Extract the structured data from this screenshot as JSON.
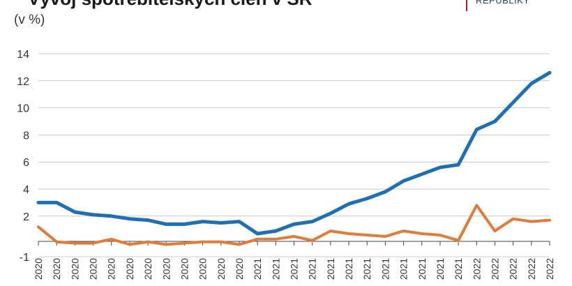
{
  "header": {
    "title": "Vývoj spotřebitelských cien v SR",
    "logo_text": "REPUBLIKY",
    "unit": "(v %)"
  },
  "colors": {
    "series_1": "#1f6fb4",
    "series_2": "#e07b39",
    "grid": "#c8c8c8",
    "logo_accent": "#c8102e"
  },
  "chart_data": {
    "type": "line",
    "title": "Vývoj spotřebitelských cien v SR",
    "ylabel": "(v %)",
    "ylim": [
      -1,
      14
    ],
    "yticks": [
      -1,
      2,
      4,
      6,
      8,
      10,
      12,
      14
    ],
    "grid": true,
    "x_tick_labels": [
      "2020",
      "2020",
      "2020",
      "2020",
      "2020",
      "2020",
      "2020",
      "2020",
      "2020",
      "2020",
      "2020",
      "2020",
      "2021",
      "2021",
      "2021",
      "2021",
      "2021",
      "2021",
      "2021",
      "2021",
      "2021",
      "2021",
      "2021",
      "2021",
      "2022",
      "2022",
      "2022",
      "2022",
      "2022"
    ],
    "series": [
      {
        "color": "#1f6fb4",
        "values": [
          3.0,
          3.0,
          2.3,
          2.1,
          2.0,
          1.8,
          1.7,
          1.4,
          1.4,
          1.6,
          1.5,
          1.6,
          0.7,
          0.9,
          1.4,
          1.6,
          2.2,
          2.9,
          3.3,
          3.8,
          4.6,
          5.1,
          5.6,
          5.8,
          8.4,
          9.0,
          10.4,
          11.8,
          12.6
        ]
      },
      {
        "color": "#e07b39",
        "values": [
          1.2,
          0.1,
          0.0,
          0.0,
          0.3,
          -0.1,
          0.1,
          -0.1,
          0.0,
          0.1,
          0.1,
          -0.1,
          0.3,
          0.3,
          0.5,
          0.2,
          0.9,
          0.7,
          0.6,
          0.5,
          0.9,
          0.7,
          0.6,
          0.2,
          2.8,
          0.9,
          1.8,
          1.6,
          1.7
        ]
      }
    ]
  }
}
